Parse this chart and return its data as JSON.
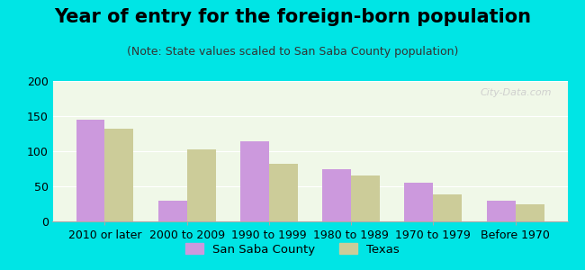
{
  "title": "Year of entry for the foreign-born population",
  "subtitle": "(Note: State values scaled to San Saba County population)",
  "categories": [
    "2010 or later",
    "2000 to 2009",
    "1990 to 1999",
    "1980 to 1989",
    "1970 to 1979",
    "Before 1970"
  ],
  "san_saba": [
    145,
    30,
    114,
    75,
    55,
    30
  ],
  "texas": [
    132,
    102,
    82,
    66,
    38,
    24
  ],
  "san_saba_color": "#cc99dd",
  "texas_color": "#cccc99",
  "background_outer": "#00e5e5",
  "background_inner": "#f0f8e8",
  "ylim": [
    0,
    200
  ],
  "yticks": [
    0,
    50,
    100,
    150,
    200
  ],
  "bar_width": 0.35,
  "legend_labels": [
    "San Saba County",
    "Texas"
  ],
  "title_fontsize": 15,
  "subtitle_fontsize": 9,
  "tick_fontsize": 9
}
